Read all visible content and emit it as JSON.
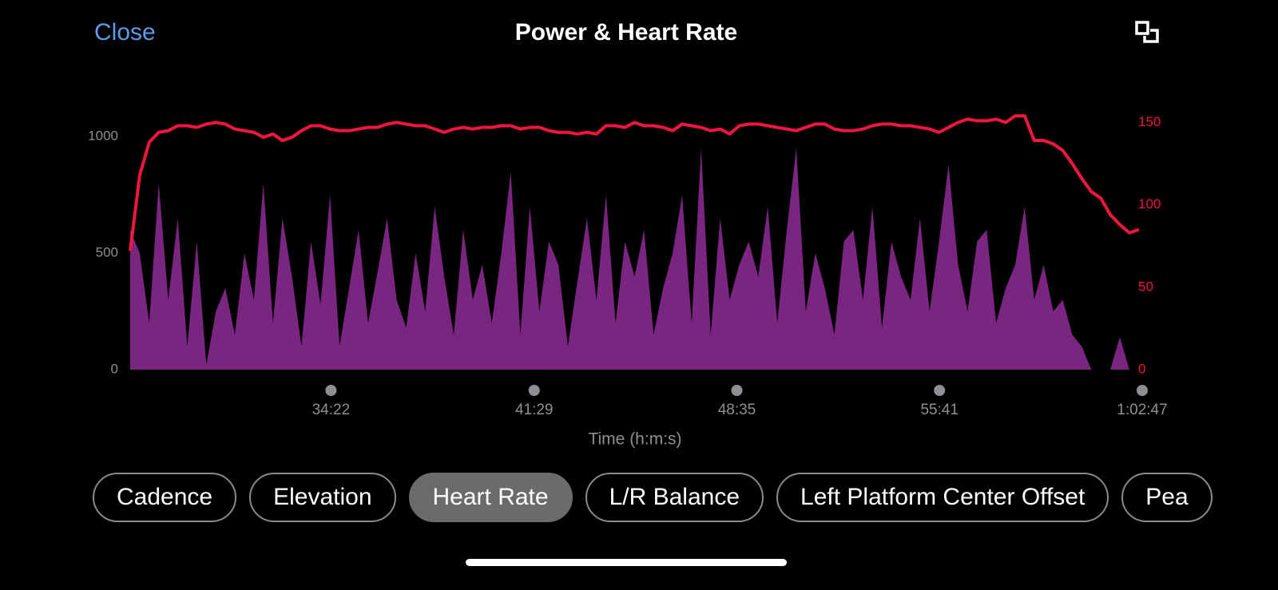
{
  "header": {
    "close": "Close",
    "title": "Power & Heart Rate"
  },
  "chart_data": {
    "type": "area",
    "xlabel": "Time (h:m:s)",
    "x": [
      1640,
      1660,
      1680,
      1700,
      1720,
      1740,
      1760,
      1780,
      1800,
      1820,
      1840,
      1860,
      1880,
      1900,
      1920,
      1940,
      1960,
      1980,
      2000,
      2020,
      2040,
      2060,
      2080,
      2100,
      2120,
      2140,
      2160,
      2180,
      2200,
      2220,
      2240,
      2260,
      2280,
      2300,
      2320,
      2340,
      2360,
      2380,
      2400,
      2420,
      2440,
      2460,
      2480,
      2500,
      2520,
      2540,
      2560,
      2580,
      2600,
      2620,
      2640,
      2660,
      2680,
      2700,
      2720,
      2740,
      2760,
      2780,
      2800,
      2820,
      2840,
      2860,
      2880,
      2900,
      2920,
      2940,
      2960,
      2980,
      3000,
      3020,
      3040,
      3060,
      3080,
      3100,
      3120,
      3140,
      3160,
      3180,
      3200,
      3220,
      3240,
      3260,
      3280,
      3300,
      3320,
      3340,
      3360,
      3380,
      3400,
      3420,
      3440,
      3460,
      3480,
      3500,
      3520,
      3540,
      3560,
      3580,
      3600,
      3620,
      3640,
      3660,
      3680,
      3700,
      3720,
      3740,
      3760
    ],
    "series": [
      {
        "type": "area",
        "color": "#7a2580",
        "values": [
          600,
          500,
          200,
          800,
          300,
          650,
          100,
          550,
          20,
          250,
          350,
          150,
          500,
          300,
          800,
          200,
          650,
          400,
          100,
          550,
          280,
          750,
          100,
          350,
          600,
          200,
          420,
          650,
          300,
          180,
          500,
          250,
          700,
          400,
          150,
          600,
          300,
          450,
          200,
          500,
          850,
          150,
          700,
          250,
          550,
          450,
          100,
          380,
          650,
          300,
          750,
          200,
          550,
          400,
          600,
          150,
          350,
          500,
          750,
          200,
          950,
          150,
          650,
          300,
          450,
          550,
          400,
          700,
          200,
          600,
          950,
          250,
          500,
          350,
          150,
          550,
          600,
          300,
          700,
          180,
          550,
          400,
          300,
          650,
          250,
          550,
          880,
          450,
          250,
          550,
          600,
          200,
          350,
          450,
          700,
          300,
          450,
          250,
          300,
          150,
          100,
          0,
          0,
          0,
          140,
          0,
          0
        ]
      },
      {
        "type": "line",
        "axis": "y2",
        "color": "#f0163e",
        "values": [
          72,
          118,
          138,
          144,
          145,
          148,
          148,
          147,
          149,
          150,
          149,
          146,
          145,
          144,
          141,
          143,
          139,
          141,
          145,
          148,
          148,
          146,
          145,
          145,
          146,
          147,
          147,
          149,
          150,
          149,
          148,
          148,
          146,
          144,
          146,
          147,
          146,
          147,
          147,
          148,
          148,
          146,
          147,
          147,
          145,
          144,
          144,
          143,
          144,
          143,
          148,
          148,
          147,
          150,
          148,
          148,
          147,
          145,
          149,
          148,
          147,
          145,
          146,
          143,
          148,
          149,
          149,
          148,
          147,
          146,
          145,
          147,
          149,
          149,
          146,
          145,
          145,
          146,
          148,
          149,
          149,
          148,
          148,
          147,
          146,
          144,
          147,
          150,
          152,
          151,
          151,
          152,
          150,
          154,
          154,
          139,
          139,
          137,
          133,
          125,
          116,
          108,
          104,
          94,
          88,
          83,
          85
        ]
      }
    ],
    "xlim": [
      1640,
      3767
    ],
    "xticks": [
      {
        "value": 2062,
        "label": "34:22"
      },
      {
        "value": 2489,
        "label": "41:29"
      },
      {
        "value": 2915,
        "label": "48:35"
      },
      {
        "value": 3341,
        "label": "55:41"
      },
      {
        "value": 3767,
        "label": "1:02:47"
      }
    ],
    "ylim": [
      0,
      1100
    ],
    "yticks": [
      0,
      500,
      1000
    ],
    "y2lim": [
      0,
      155.5
    ],
    "y2ticks": [
      0,
      50,
      100,
      150
    ]
  },
  "chips": {
    "items": [
      "Cadence",
      "Elevation",
      "Heart Rate",
      "L/R Balance",
      "Left Platform Center Offset",
      "Pea"
    ],
    "selected_index": 2
  }
}
